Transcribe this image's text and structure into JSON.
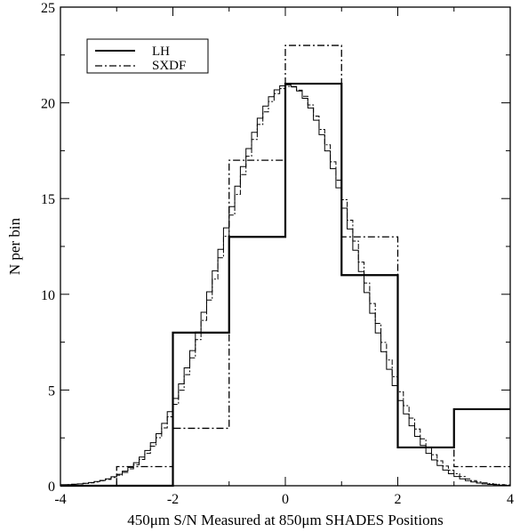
{
  "chart_data": {
    "type": "step",
    "title": "",
    "xlabel": "450μm S/N Measured at 850μm SHADES Positions",
    "ylabel": "N per bin",
    "xlim": [
      -4,
      4
    ],
    "ylim": [
      0,
      25
    ],
    "xticks": [
      -4,
      -2,
      0,
      2,
      4
    ],
    "xtick_labels": [
      "-4",
      "-2",
      "0",
      "2",
      "4"
    ],
    "yticks": [
      0,
      5,
      10,
      15,
      20,
      25
    ],
    "ytick_labels": [
      "0",
      "5",
      "10",
      "15",
      "20",
      "25"
    ],
    "legend": {
      "placement": "top-left",
      "entries": [
        "LH",
        "SXDF"
      ]
    },
    "series": [
      {
        "name": "LH",
        "style": "solid",
        "bin_edges": [
          -4,
          -3,
          -2,
          -1,
          0,
          1,
          2,
          3,
          4
        ],
        "values": [
          0,
          0,
          8,
          13,
          21,
          11,
          2,
          4
        ]
      },
      {
        "name": "SXDF",
        "style": "dashdot",
        "bin_edges": [
          -4,
          -3,
          -2,
          -1,
          0,
          1,
          2,
          3,
          4
        ],
        "values": [
          0,
          1,
          3,
          17,
          23,
          13,
          2,
          1
        ]
      },
      {
        "name": "",
        "style": "solid-thin",
        "bin_edges": [
          -4.0,
          -3.9,
          -3.8,
          -3.7,
          -3.6,
          -3.5,
          -3.4,
          -3.3,
          -3.2,
          -3.1,
          -3.0,
          -2.9,
          -2.8,
          -2.7,
          -2.6,
          -2.5,
          -2.4,
          -2.3,
          -2.2,
          -2.1,
          -2.0,
          -1.9,
          -1.8,
          -1.7,
          -1.6,
          -1.5,
          -1.4,
          -1.3,
          -1.2,
          -1.1,
          -1.0,
          -0.9,
          -0.8,
          -0.7,
          -0.6,
          -0.5,
          -0.4,
          -0.3,
          -0.2,
          -0.1,
          0.0,
          0.1,
          0.2,
          0.3,
          0.4,
          0.5,
          0.6,
          0.7,
          0.8,
          0.9,
          1.0,
          1.1,
          1.2,
          1.3,
          1.4,
          1.5,
          1.6,
          1.7,
          1.8,
          1.9,
          2.0,
          2.1,
          2.2,
          2.3,
          2.4,
          2.5,
          2.6,
          2.7,
          2.8,
          2.9,
          3.0,
          3.1,
          3.2,
          3.3,
          3.4,
          3.5,
          3.6,
          3.7,
          3.8,
          3.9,
          4.0
        ],
        "values": [
          0.05,
          0.06,
          0.08,
          0.1,
          0.13,
          0.17,
          0.22,
          0.28,
          0.36,
          0.47,
          0.6,
          0.76,
          0.96,
          1.2,
          1.5,
          1.84,
          2.25,
          2.72,
          3.26,
          3.87,
          4.56,
          5.32,
          6.16,
          7.06,
          8.03,
          9.06,
          10.13,
          11.23,
          12.35,
          13.47,
          14.58,
          15.65,
          16.67,
          17.61,
          18.46,
          19.2,
          19.83,
          20.32,
          20.68,
          20.89,
          20.94,
          20.85,
          20.62,
          20.24,
          19.73,
          19.09,
          18.34,
          17.49,
          16.56,
          15.56,
          14.5,
          13.41,
          12.3,
          11.19,
          10.09,
          9.01,
          7.98,
          7.0,
          6.08,
          5.23,
          4.45,
          3.75,
          3.13,
          2.58,
          2.1,
          1.69,
          1.35,
          1.06,
          0.82,
          0.63,
          0.48,
          0.36,
          0.27,
          0.2,
          0.14,
          0.1,
          0.07,
          0.05,
          0.03,
          0.02
        ]
      },
      {
        "name": "",
        "style": "dashdot-thin",
        "bin_edges": [
          -4.0,
          -3.9,
          -3.8,
          -3.7,
          -3.6,
          -3.5,
          -3.4,
          -3.3,
          -3.2,
          -3.1,
          -3.0,
          -2.9,
          -2.8,
          -2.7,
          -2.6,
          -2.5,
          -2.4,
          -2.3,
          -2.2,
          -2.1,
          -2.0,
          -1.9,
          -1.8,
          -1.7,
          -1.6,
          -1.5,
          -1.4,
          -1.3,
          -1.2,
          -1.1,
          -1.0,
          -0.9,
          -0.8,
          -0.7,
          -0.6,
          -0.5,
          -0.4,
          -0.3,
          -0.2,
          -0.1,
          0.0,
          0.1,
          0.2,
          0.3,
          0.4,
          0.5,
          0.6,
          0.7,
          0.8,
          0.9,
          1.0,
          1.1,
          1.2,
          1.3,
          1.4,
          1.5,
          1.6,
          1.7,
          1.8,
          1.9,
          2.0,
          2.1,
          2.2,
          2.3,
          2.4,
          2.5,
          2.6,
          2.7,
          2.8,
          2.9,
          3.0,
          3.1,
          3.2,
          3.3,
          3.4,
          3.5,
          3.6,
          3.7,
          3.8,
          3.9,
          4.0
        ],
        "values": [
          0.05,
          0.06,
          0.07,
          0.09,
          0.12,
          0.15,
          0.2,
          0.26,
          0.33,
          0.43,
          0.55,
          0.7,
          0.88,
          1.1,
          1.37,
          1.69,
          2.07,
          2.51,
          3.02,
          3.6,
          4.25,
          4.99,
          5.8,
          6.68,
          7.63,
          8.64,
          9.7,
          10.79,
          11.91,
          13.03,
          14.14,
          15.22,
          16.25,
          17.21,
          18.09,
          18.87,
          19.53,
          20.07,
          20.48,
          20.74,
          20.86,
          20.83,
          20.66,
          20.34,
          19.89,
          19.31,
          18.61,
          17.81,
          16.92,
          15.96,
          14.94,
          13.87,
          12.78,
          11.68,
          10.59,
          9.52,
          8.48,
          7.49,
          6.57,
          5.7,
          4.91,
          4.18,
          3.53,
          2.96,
          2.45,
          2.0,
          1.62,
          1.3,
          1.03,
          0.81,
          0.63,
          0.48,
          0.36,
          0.27,
          0.2,
          0.15,
          0.11,
          0.08,
          0.06,
          0.04
        ]
      }
    ]
  }
}
